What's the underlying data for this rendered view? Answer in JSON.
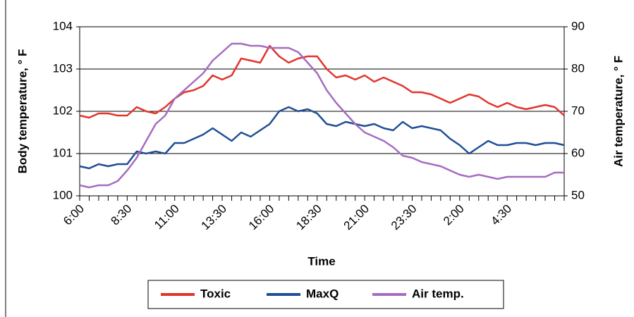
{
  "chart_data": {
    "type": "line",
    "categories": [
      "6:00",
      null,
      null,
      null,
      null,
      "8:30",
      null,
      null,
      null,
      null,
      "11:00",
      null,
      null,
      null,
      null,
      "13:30",
      null,
      null,
      null,
      null,
      "16:00",
      null,
      null,
      null,
      null,
      "18:30",
      null,
      null,
      null,
      null,
      "21:00",
      null,
      null,
      null,
      null,
      "23:30",
      null,
      null,
      null,
      null,
      "2:00",
      null,
      null,
      null,
      null,
      "4:30",
      null,
      null,
      null,
      null,
      null,
      null
    ],
    "x_label": "Time",
    "y_label": "Body temperature, ° F",
    "y2_label": "Air temperature, ° F",
    "ylim": [
      100,
      104
    ],
    "yticks": [
      100,
      101,
      102,
      103,
      104
    ],
    "y2lim": [
      50,
      90
    ],
    "y2ticks": [
      50,
      60,
      70,
      80,
      90
    ],
    "grid": true,
    "legend": "bottom",
    "series": [
      {
        "name": "Toxic",
        "color": "#e2342b",
        "values": [
          101.9,
          101.85,
          101.95,
          101.95,
          101.9,
          101.9,
          102.1,
          102.0,
          101.95,
          102.1,
          102.3,
          102.45,
          102.5,
          102.6,
          102.85,
          102.75,
          102.85,
          103.25,
          103.2,
          103.15,
          103.55,
          103.3,
          103.15,
          103.25,
          103.3,
          103.3,
          103.0,
          102.8,
          102.85,
          102.75,
          102.85,
          102.7,
          102.8,
          102.7,
          102.6,
          102.45,
          102.45,
          102.4,
          102.3,
          102.2,
          102.3,
          102.4,
          102.35,
          102.2,
          102.1,
          102.2,
          102.1,
          102.05,
          102.1,
          102.15,
          102.1,
          101.9
        ]
      },
      {
        "name": "MaxQ",
        "color": "#1f4e96",
        "values": [
          100.7,
          100.65,
          100.75,
          100.7,
          100.75,
          100.75,
          101.05,
          101.0,
          101.05,
          101.0,
          101.25,
          101.25,
          101.35,
          101.45,
          101.6,
          101.45,
          101.3,
          101.5,
          101.4,
          101.55,
          101.7,
          102.0,
          102.1,
          102.0,
          102.05,
          101.95,
          101.7,
          101.65,
          101.75,
          101.7,
          101.65,
          101.7,
          101.6,
          101.55,
          101.75,
          101.6,
          101.65,
          101.6,
          101.55,
          101.35,
          101.2,
          101.0,
          101.15,
          101.3,
          101.2,
          101.2,
          101.25,
          101.25,
          101.2,
          101.25,
          101.25,
          101.2
        ]
      },
      {
        "name": "Air temp.",
        "color": "#a56cc1",
        "axis": "y2",
        "values": [
          52.5,
          52,
          52.5,
          52.5,
          53.5,
          56,
          59,
          63,
          67,
          69,
          73,
          75,
          77,
          79,
          82,
          84,
          86,
          86,
          85.5,
          85.5,
          85,
          85,
          85,
          84,
          81.5,
          79,
          75,
          72,
          69.5,
          67,
          65,
          64,
          63,
          61.5,
          59.5,
          59,
          58,
          57.5,
          57,
          56,
          55,
          54.5,
          55,
          54.5,
          54,
          54.5,
          54.5,
          54.5,
          54.5,
          54.5,
          55.5,
          55.5
        ]
      }
    ]
  }
}
